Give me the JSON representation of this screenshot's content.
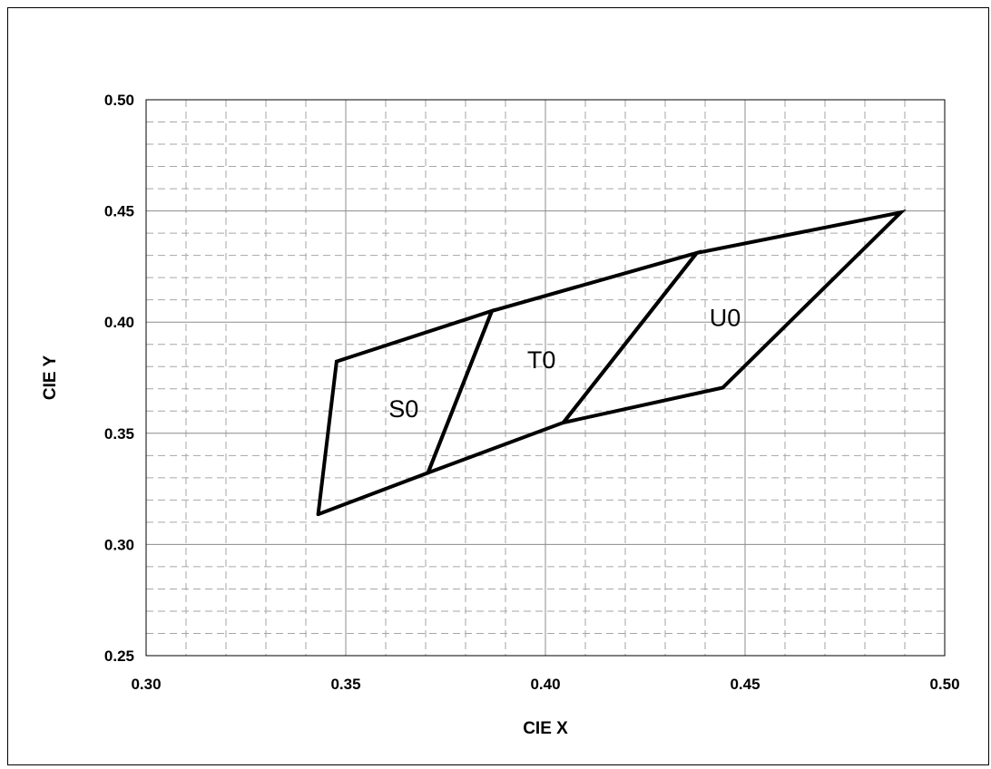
{
  "chart_data": {
    "type": "line",
    "xlabel": "CIE X",
    "ylabel": "CIE Y",
    "xlim": [
      0.3,
      0.5
    ],
    "ylim": [
      0.25,
      0.5
    ],
    "x_ticks": [
      0.3,
      0.35,
      0.4,
      0.45,
      0.5
    ],
    "x_tick_labels": [
      "0.30",
      "0.35",
      "0.40",
      "0.45",
      "0.50"
    ],
    "y_ticks": [
      0.25,
      0.3,
      0.35,
      0.4,
      0.45,
      0.5
    ],
    "y_tick_labels": [
      "0.25",
      "0.30",
      "0.35",
      "0.40",
      "0.45",
      "0.50"
    ],
    "grid": true,
    "minor_grid": "dashed",
    "legend": "none",
    "colors": {
      "line": "#000000",
      "major_grid": "#8c8c8c",
      "minor_grid": "#a6a6a6",
      "background": "#ffffff"
    },
    "series": [
      {
        "name": "S0",
        "x": [
          0.3431,
          0.3477,
          0.3866,
          0.3706,
          0.3431
        ],
        "y": [
          0.3136,
          0.3823,
          0.405,
          0.3322,
          0.3136
        ]
      },
      {
        "name": "T0",
        "x": [
          0.3706,
          0.3866,
          0.4379,
          0.4045,
          0.3706
        ],
        "y": [
          0.3322,
          0.405,
          0.4311,
          0.3548,
          0.3322
        ]
      },
      {
        "name": "U0",
        "x": [
          0.4045,
          0.4379,
          0.489,
          0.4444,
          0.4045
        ],
        "y": [
          0.3548,
          0.4311,
          0.4493,
          0.3705,
          0.3548
        ]
      }
    ],
    "annotations": [
      {
        "text": "S0",
        "x": 0.3645,
        "y": 0.361
      },
      {
        "text": "T0",
        "x": 0.399,
        "y": 0.383
      },
      {
        "text": "U0",
        "x": 0.445,
        "y": 0.402
      }
    ]
  }
}
